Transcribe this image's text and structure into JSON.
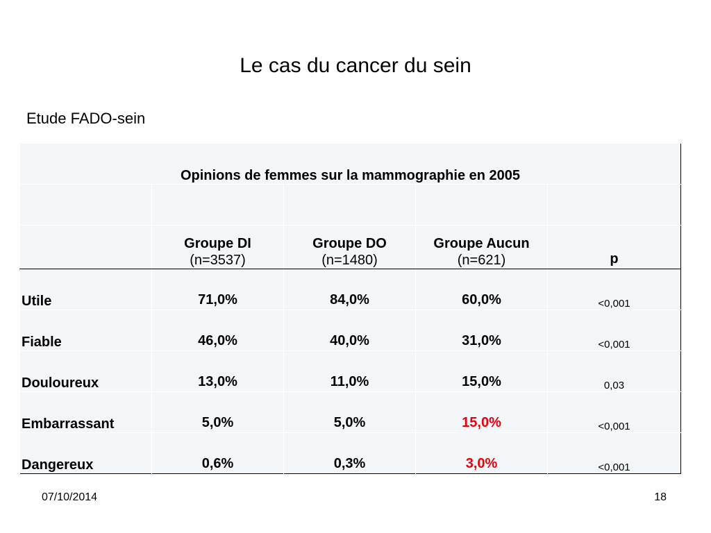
{
  "slide": {
    "title": "Le cas du cancer du sein",
    "subtitle": "Etude FADO-sein"
  },
  "table": {
    "caption": "Opinions de femmes sur la mammographie en 2005",
    "headers": [
      {
        "line1": "Groupe DI",
        "line2": "(n=3537)"
      },
      {
        "line1": "Groupe DO",
        "line2": "(n=1480)"
      },
      {
        "line1": "Groupe Aucun",
        "line2": "(n=621)"
      }
    ],
    "p_header": "p",
    "rows": [
      {
        "label": "Utile",
        "di": "71,0%",
        "do": "84,0%",
        "aucun": "60,0%",
        "p": "<0,001"
      },
      {
        "label": "Fiable",
        "di": "46,0%",
        "do": "40,0%",
        "aucun": "31,0%",
        "p": "<0,001"
      },
      {
        "label": "Douloureux",
        "di": "13,0%",
        "do": "11,0%",
        "aucun": "15,0%",
        "p": "0,03"
      },
      {
        "label": "Embarrassant",
        "di": "5,0%",
        "do": "5,0%",
        "aucun": "15,0%",
        "p": "<0,001"
      },
      {
        "label": "Dangereux",
        "di": "0,6%",
        "do": "0,3%",
        "aucun": "3,0%",
        "p": "<0,001"
      }
    ],
    "highlight_color": "#e8000b"
  },
  "footer": {
    "date": "07/10/2014",
    "page": "18"
  }
}
